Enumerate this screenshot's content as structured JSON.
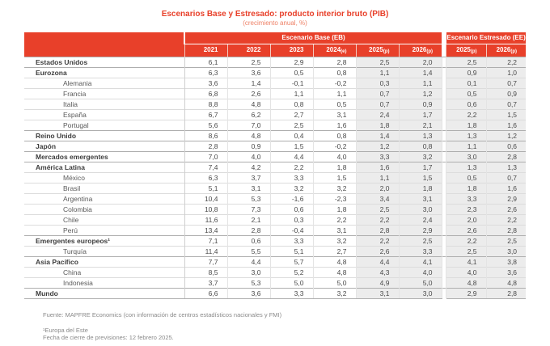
{
  "title": "Escenarios Base y Estresado: producto interior bruto (PIB)",
  "subtitle": "(crecimiento anual, %)",
  "colors": {
    "accent_red": "#E8402A",
    "shaded_cell": "#ECECEC"
  },
  "table": {
    "header": {
      "base_group": "Escenario Base (EB)",
      "stressed_group": "Escenario Estresado (EE)",
      "years": [
        {
          "y": "2021",
          "s": ""
        },
        {
          "y": "2022",
          "s": ""
        },
        {
          "y": "2023",
          "s": ""
        },
        {
          "y": "2024",
          "s": "(e)"
        },
        {
          "y": "2025",
          "s": "(p)"
        },
        {
          "y": "2026",
          "s": "(p)"
        },
        {
          "y": "2025",
          "s": "(p)"
        },
        {
          "y": "2026",
          "s": "(p)"
        }
      ]
    },
    "rows": [
      {
        "label": "Estados Unidos",
        "bold": true,
        "values": [
          "6,1",
          "2,5",
          "2,9",
          "2,8",
          "2,5",
          "2,0",
          "2,5",
          "2,2"
        ]
      },
      {
        "label": "Eurozona",
        "bold": true,
        "values": [
          "6,3",
          "3,6",
          "0,5",
          "0,8",
          "1,1",
          "1,4",
          "0,9",
          "1,0"
        ]
      },
      {
        "label": "Alemania",
        "bold": false,
        "values": [
          "3,6",
          "1,4",
          "-0,1",
          "-0,2",
          "0,3",
          "1,1",
          "0,1",
          "0,7"
        ]
      },
      {
        "label": "Francia",
        "bold": false,
        "values": [
          "6,8",
          "2,6",
          "1,1",
          "1,1",
          "0,7",
          "1,2",
          "0,5",
          "0,9"
        ]
      },
      {
        "label": "Italia",
        "bold": false,
        "values": [
          "8,8",
          "4,8",
          "0,8",
          "0,5",
          "0,7",
          "0,9",
          "0,6",
          "0,7"
        ]
      },
      {
        "label": "España",
        "bold": false,
        "values": [
          "6,7",
          "6,2",
          "2,7",
          "3,1",
          "2,4",
          "1,7",
          "2,2",
          "1,5"
        ]
      },
      {
        "label": "Portugal",
        "bold": false,
        "values": [
          "5,6",
          "7,0",
          "2,5",
          "1,6",
          "1,8",
          "2,1",
          "1,8",
          "1,6"
        ]
      },
      {
        "label": "Reino Unido",
        "bold": true,
        "values": [
          "8,6",
          "4,8",
          "0,4",
          "0,8",
          "1,4",
          "1,3",
          "1,3",
          "1,2"
        ]
      },
      {
        "label": "Japón",
        "bold": true,
        "values": [
          "2,8",
          "0,9",
          "1,5",
          "-0,2",
          "1,2",
          "0,8",
          "1,1",
          "0,6"
        ]
      },
      {
        "label": "Mercados emergentes",
        "bold": true,
        "values": [
          "7,0",
          "4,0",
          "4,4",
          "4,0",
          "3,3",
          "3,2",
          "3,0",
          "2,8"
        ]
      },
      {
        "label": "América Latina",
        "bold": true,
        "values": [
          "7,4",
          "4,2",
          "2,2",
          "1,8",
          "1,6",
          "1,7",
          "1,3",
          "1,3"
        ]
      },
      {
        "label": "México",
        "bold": false,
        "values": [
          "6,3",
          "3,7",
          "3,3",
          "1,5",
          "1,1",
          "1,5",
          "0,5",
          "0,7"
        ]
      },
      {
        "label": "Brasil",
        "bold": false,
        "values": [
          "5,1",
          "3,1",
          "3,2",
          "3,2",
          "2,0",
          "1,8",
          "1,8",
          "1,6"
        ]
      },
      {
        "label": "Argentina",
        "bold": false,
        "values": [
          "10,4",
          "5,3",
          "-1,6",
          "-2,3",
          "3,4",
          "3,1",
          "3,3",
          "2,9"
        ]
      },
      {
        "label": "Colombia",
        "bold": false,
        "values": [
          "10,8",
          "7,3",
          "0,6",
          "1,8",
          "2,5",
          "3,0",
          "2,3",
          "2,6"
        ]
      },
      {
        "label": "Chile",
        "bold": false,
        "values": [
          "11,6",
          "2,1",
          "0,3",
          "2,2",
          "2,2",
          "2,4",
          "2,0",
          "2,2"
        ]
      },
      {
        "label": "Perú",
        "bold": false,
        "values": [
          "13,4",
          "2,8",
          "-0,4",
          "3,1",
          "2,8",
          "2,9",
          "2,6",
          "2,8"
        ]
      },
      {
        "label": "Emergentes europeos¹",
        "bold": true,
        "values": [
          "7,1",
          "0,6",
          "3,3",
          "3,2",
          "2,2",
          "2,5",
          "2,2",
          "2,5"
        ]
      },
      {
        "label": "Turquía",
        "bold": false,
        "values": [
          "11,4",
          "5,5",
          "5,1",
          "2,7",
          "2,6",
          "3,3",
          "2,5",
          "3,0"
        ]
      },
      {
        "label": "Asia Pacífico",
        "bold": true,
        "values": [
          "7,7",
          "4,4",
          "5,7",
          "4,8",
          "4,4",
          "4,1",
          "4,1",
          "3,8"
        ]
      },
      {
        "label": "China",
        "bold": false,
        "values": [
          "8,5",
          "3,0",
          "5,2",
          "4,8",
          "4,3",
          "4,0",
          "4,0",
          "3,6"
        ]
      },
      {
        "label": "Indonesia",
        "bold": false,
        "values": [
          "3,7",
          "5,3",
          "5,0",
          "5,0",
          "4,9",
          "5,0",
          "4,8",
          "4,8"
        ]
      },
      {
        "label": "Mundo",
        "bold": true,
        "values": [
          "6,6",
          "3,6",
          "3,3",
          "3,2",
          "3,1",
          "3,0",
          "2,9",
          "2,8"
        ]
      }
    ]
  },
  "footer": {
    "source": "Fuente: MAPFRE Economics (con información de centros estadísticos nacionales y FMI)",
    "note1": "¹Europa del Este",
    "note2": "Fecha de cierre de previsiones: 12 febrero 2025."
  }
}
